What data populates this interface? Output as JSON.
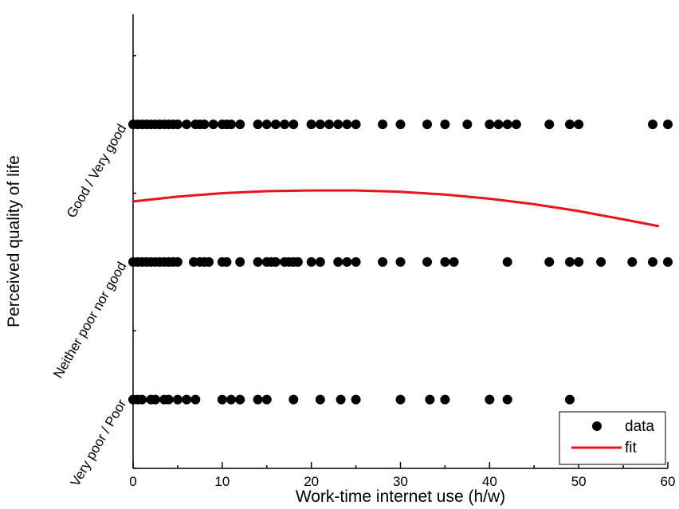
{
  "chart_data": {
    "type": "scatter",
    "xlabel": "Work-time internet use (h/w)",
    "ylabel": "Perceived quality of life",
    "xlim": [
      0,
      60
    ],
    "ylim": [
      0.5,
      3.8
    ],
    "x_ticks": [
      0,
      10,
      20,
      30,
      40,
      50,
      60
    ],
    "x_tick_labels": [
      "0",
      "10",
      "20",
      "30",
      "40",
      "50",
      "60"
    ],
    "y_categories": [
      {
        "value": 1,
        "label": "Very poor / Poor"
      },
      {
        "value": 2,
        "label": "Neither poor nor good"
      },
      {
        "value": 3,
        "label": "Good / Very good"
      }
    ],
    "grid": false,
    "legend": {
      "placement": "bottom-right",
      "entries": [
        {
          "label": "data",
          "marker": "circle",
          "color": "#000000"
        },
        {
          "label": "fit",
          "marker": "line",
          "color": "#e8141b"
        }
      ]
    },
    "series": [
      {
        "name": "data",
        "kind": "scatter",
        "color": "#000000",
        "points": [
          {
            "level": 3,
            "x": [
              0,
              0.5,
              1,
              1.5,
              2,
              2.5,
              3,
              3.5,
              4,
              4.5,
              5,
              6,
              7,
              7.5,
              8,
              9,
              10,
              10.5,
              11,
              12,
              14,
              15,
              16,
              17,
              18,
              20,
              21,
              22,
              23,
              24,
              25,
              28,
              30,
              33,
              35,
              37.5,
              40,
              41,
              42,
              43,
              46.7,
              49,
              50,
              58.3,
              60
            ]
          },
          {
            "level": 2,
            "x": [
              0,
              0.5,
              1,
              1.5,
              2,
              2.5,
              3,
              3.5,
              4,
              4.5,
              5,
              6.8,
              7.5,
              8,
              8.5,
              10,
              10.5,
              12,
              14,
              15,
              15.5,
              16,
              17,
              17.5,
              18,
              18.5,
              20,
              21,
              23,
              24,
              25,
              28,
              30,
              33,
              35,
              36,
              42,
              46.7,
              49,
              50,
              52.5,
              56,
              58.3,
              60
            ]
          },
          {
            "level": 1,
            "x": [
              0,
              0.5,
              1,
              2,
              2.5,
              3.5,
              4,
              5,
              6,
              7,
              10,
              11,
              12,
              14,
              15,
              18,
              21,
              23.3,
              25,
              30,
              33.3,
              35,
              40,
              42,
              49
            ]
          }
        ]
      },
      {
        "name": "fit",
        "kind": "line",
        "color": "#e8141b",
        "x": [
          0,
          5,
          10,
          15,
          20,
          25,
          30,
          35,
          40,
          45,
          50,
          55,
          59
        ],
        "y": [
          2.44,
          2.475,
          2.5,
          2.515,
          2.52,
          2.52,
          2.51,
          2.49,
          2.46,
          2.42,
          2.37,
          2.31,
          2.26
        ]
      }
    ]
  }
}
